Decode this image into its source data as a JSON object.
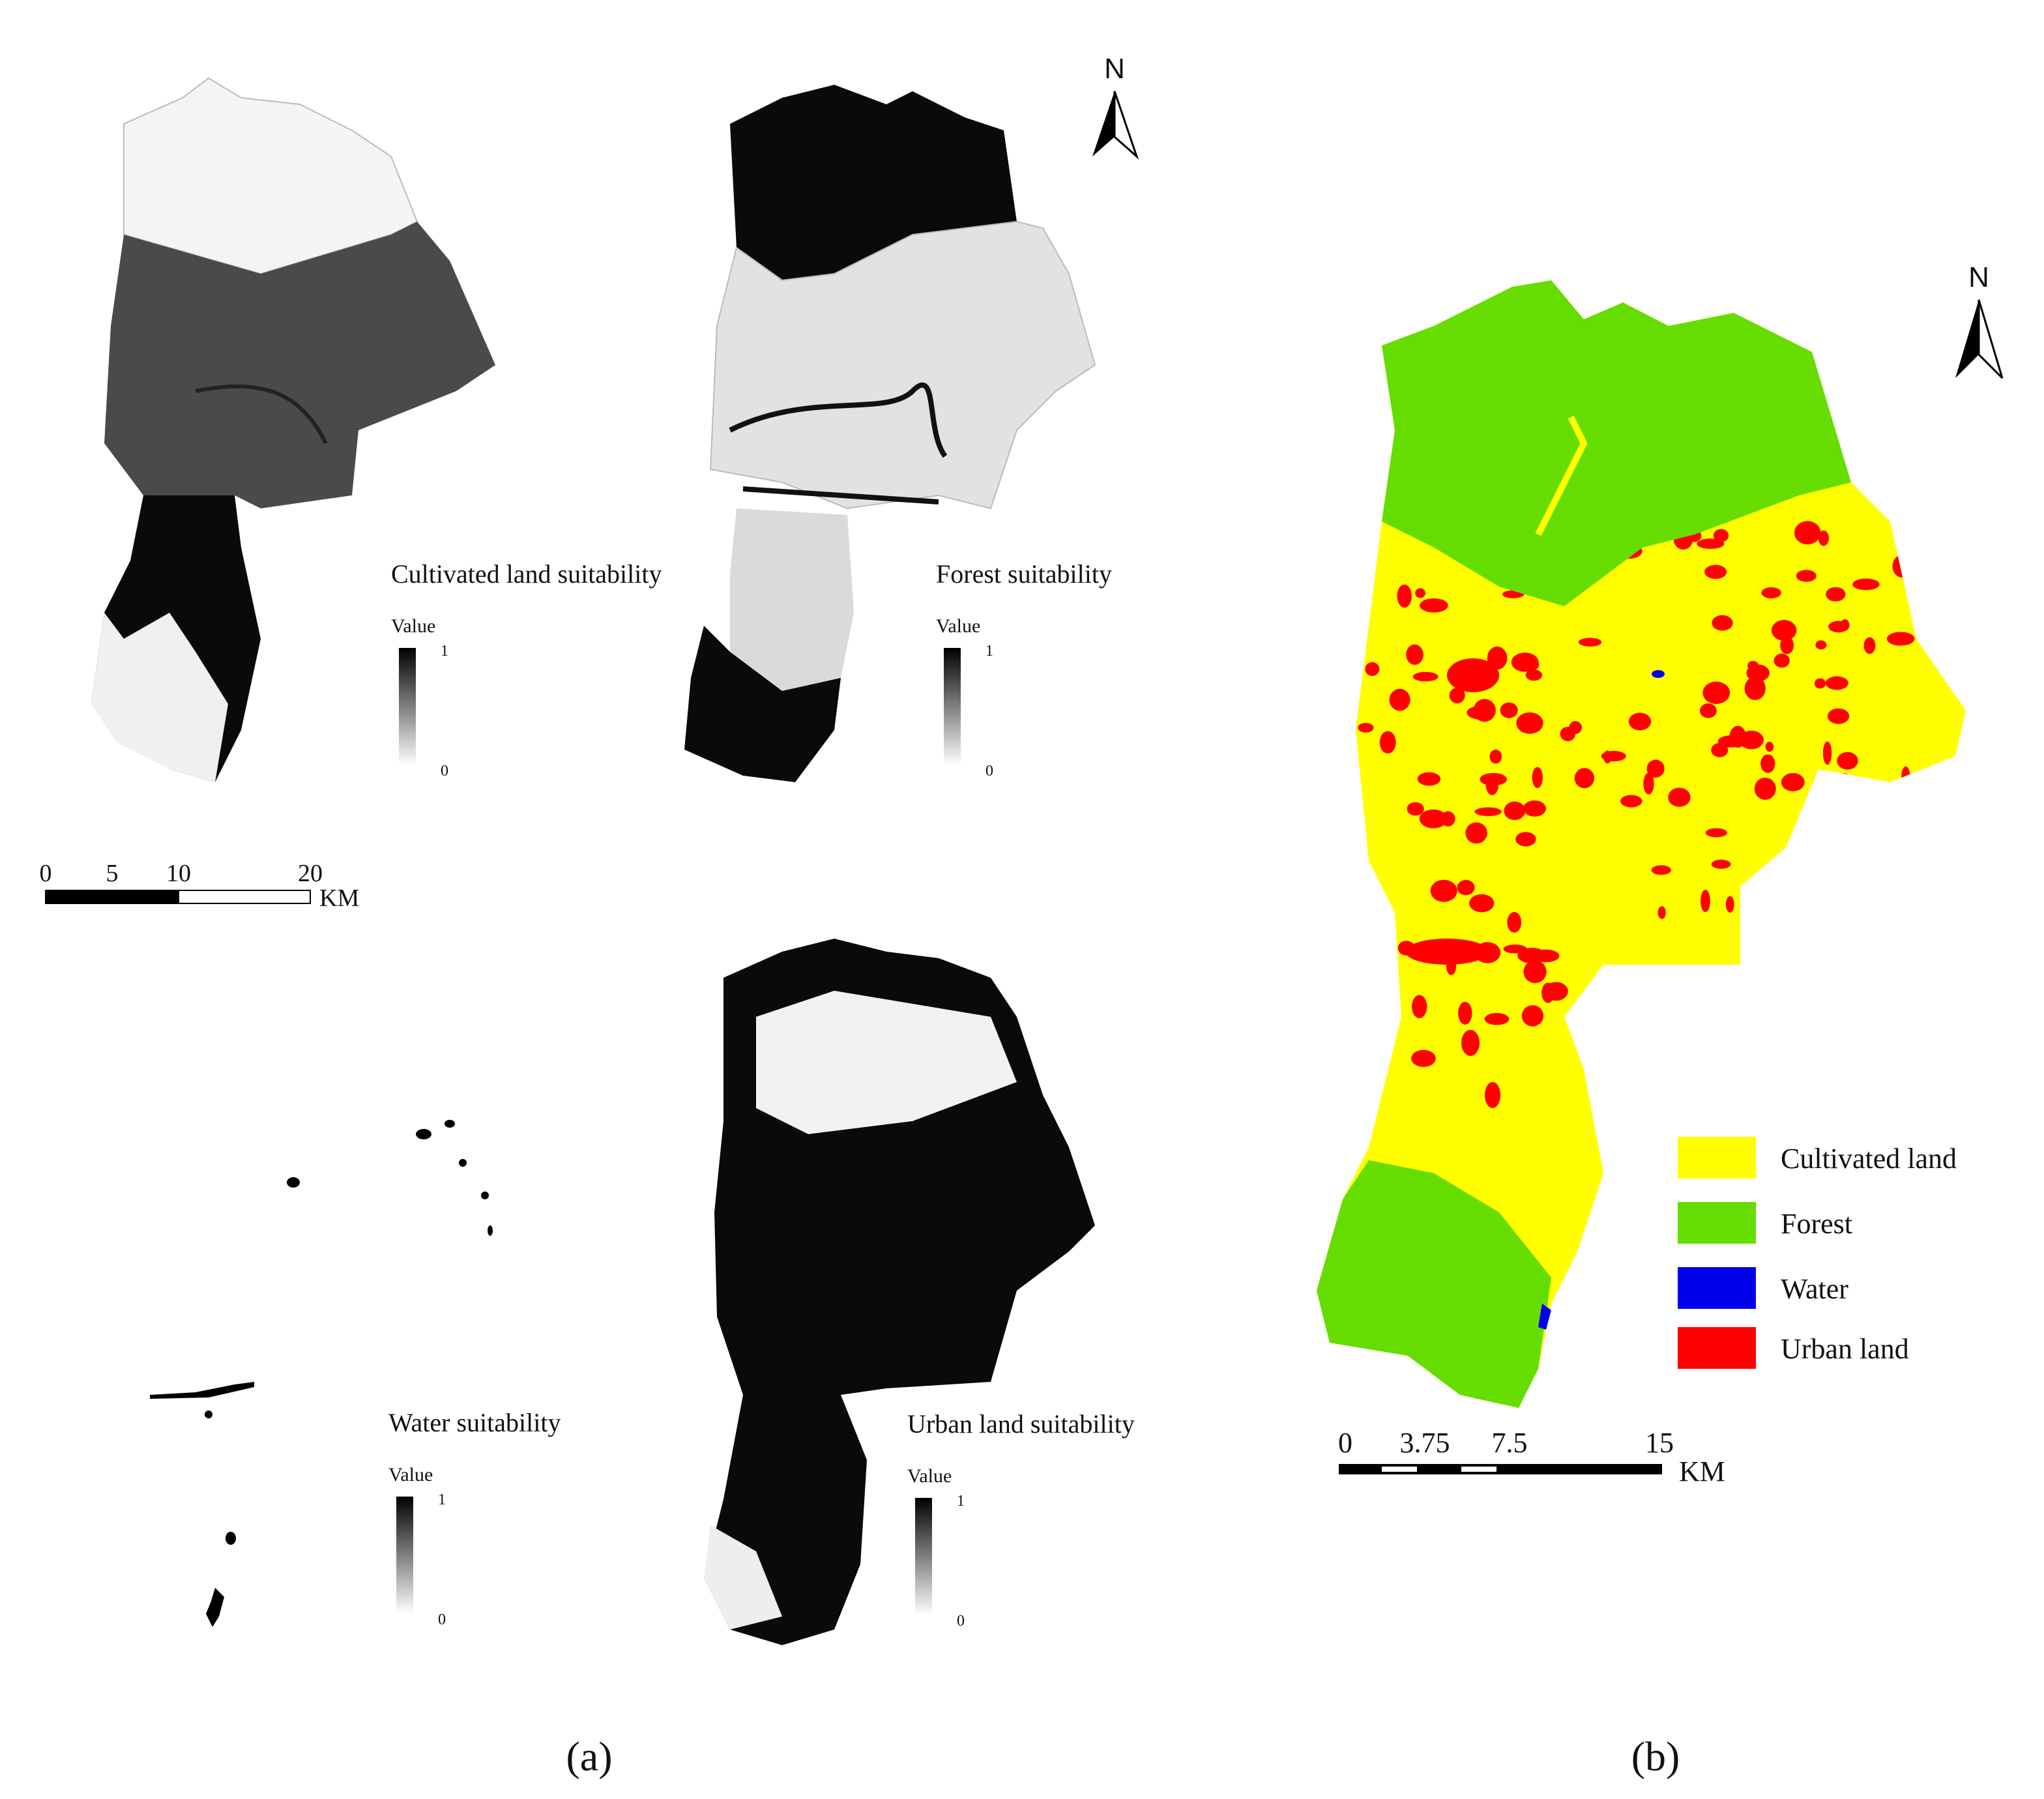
{
  "panel_a": {
    "label": "(a)",
    "north": "N",
    "maps": [
      {
        "title": "Cultivated land suitability",
        "legend_title": "Value",
        "max_label": "1",
        "min_label": "0"
      },
      {
        "title": "Forest suitability",
        "legend_title": "Value",
        "max_label": "1",
        "min_label": "0"
      },
      {
        "title": "Water suitability",
        "legend_title": "Value",
        "max_label": "1",
        "min_label": "0"
      },
      {
        "title": "Urban land suitability",
        "legend_title": "Value",
        "max_label": "1",
        "min_label": "0"
      }
    ],
    "scale_bar": {
      "ticks": [
        "0",
        "5",
        "10",
        "20"
      ],
      "unit": "KM"
    }
  },
  "panel_b": {
    "label": "(b)",
    "north": "N",
    "legend": [
      {
        "label": "Cultivated land",
        "color": "#ffff00"
      },
      {
        "label": "Forest",
        "color": "#66dd00"
      },
      {
        "label": "Water",
        "color": "#0000ee"
      },
      {
        "label": "Urban land",
        "color": "#ff0000"
      }
    ],
    "scale_bar": {
      "ticks": [
        "0",
        "3.75",
        "7.5",
        "15"
      ],
      "unit": "KM"
    }
  }
}
